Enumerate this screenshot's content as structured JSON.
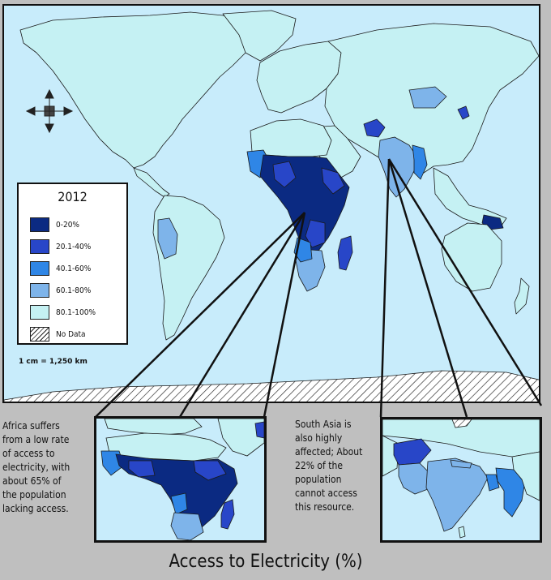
{
  "map": {
    "colors": {
      "ocean": "#c8ecfb",
      "c0_20": "#0b2a82",
      "c20_40": "#2846c8",
      "c40_60": "#2f86e6",
      "c60_80": "#7eb4ea",
      "c80_100": "#c5f1f3",
      "border": "#1a1a1a"
    },
    "compass_icon": "four-arrow-compass-icon"
  },
  "legend": {
    "title": "2012",
    "items": [
      {
        "label": "0-20%",
        "color": "#0b2a82"
      },
      {
        "label": "20.1-40%",
        "color": "#2846c8"
      },
      {
        "label": "40.1-60%",
        "color": "#2f86e6"
      },
      {
        "label": "60.1-80%",
        "color": "#7eb4ea"
      },
      {
        "label": "80.1-100%",
        "color": "#c5f1f3"
      },
      {
        "label": "No Data",
        "color": "hatched"
      }
    ]
  },
  "scale": "1 cm = 1,250 km",
  "africa_caption": "Africa suffers\nfrom a low rate\nof access to\nelectricity, with\nabout 65% of\nthe population\nlacking access.",
  "south_asia_caption": "South Asia is\nalso highly\naffected; About\n22% of the\npopulation\ncannot access\nthis resource.",
  "title": "Access to Electricity (%)"
}
